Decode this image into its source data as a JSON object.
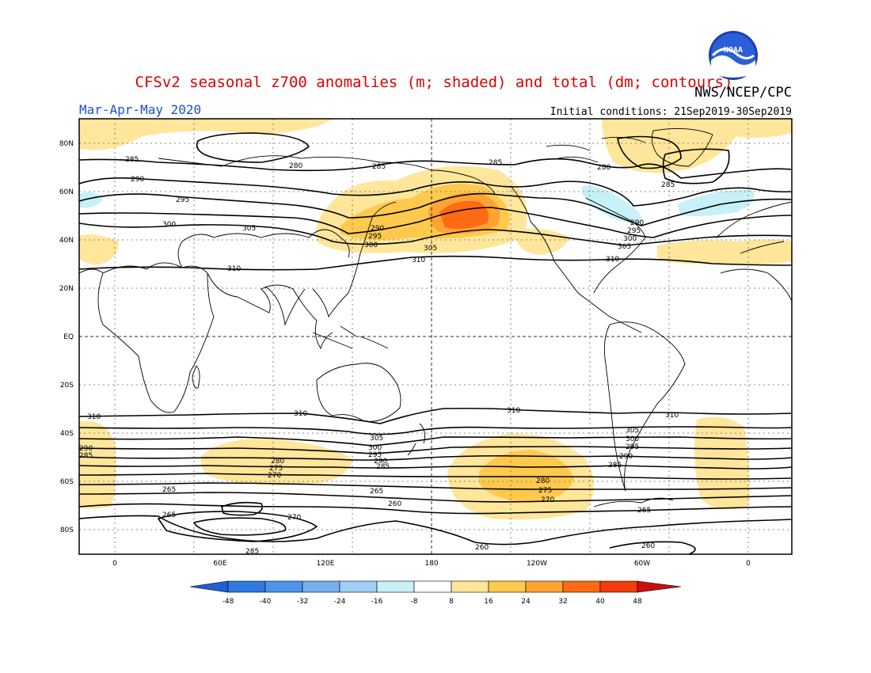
{
  "title": "CFSv2 seasonal z700 anomalies (m; shaded) and total (dm; contours)",
  "agency": "NWS/NCEP/CPC",
  "season": "Mar-Apr-May 2020",
  "initial_conditions": "Initial conditions: 21Sep2019-30Sep2019",
  "logo_text": "NOAA",
  "colors": {
    "title": "#dd0000",
    "season": "#1a4fd0",
    "neg48": "#1f5fd6",
    "neg40": "#2f7ae2",
    "neg32": "#4c94ea",
    "neg24": "#74b0f0",
    "neg16": "#9fd0f4",
    "neg8": "#c8f0f7",
    "neutral": "#ffffff",
    "pos8": "#ffe69a",
    "pos16": "#ffc94d",
    "pos24": "#ffa332",
    "pos32": "#ff6a14",
    "pos40": "#f03b0a",
    "pos48": "#c80f0f"
  },
  "axes": {
    "lat_ticks": [
      "80N",
      "60N",
      "40N",
      "20N",
      "EQ",
      "20S",
      "40S",
      "60S",
      "80S"
    ],
    "lon_ticks": [
      "0",
      "60E",
      "120E",
      "180",
      "120W",
      "60W",
      "0"
    ]
  },
  "colorbar": {
    "labels": [
      "-48",
      "-40",
      "-32",
      "-24",
      "-16",
      "-8",
      "8",
      "16",
      "24",
      "32",
      "40",
      "48"
    ]
  },
  "contour_labels": {
    "nh": [
      "285",
      "280",
      "290",
      "295",
      "300",
      "305",
      "310",
      "290",
      "295",
      "300",
      "305",
      "285",
      "310",
      "280",
      "285",
      "290",
      "295",
      "300",
      "305",
      "310",
      "285"
    ],
    "sh": [
      "310",
      "310",
      "310",
      "310",
      "305",
      "300",
      "295",
      "290",
      "285",
      "280",
      "275",
      "270",
      "265",
      "265",
      "260",
      "265",
      "270",
      "260",
      "285",
      "305",
      "300",
      "295",
      "290",
      "285",
      "280",
      "275",
      "270",
      "265",
      "260",
      "290",
      "285"
    ]
  }
}
